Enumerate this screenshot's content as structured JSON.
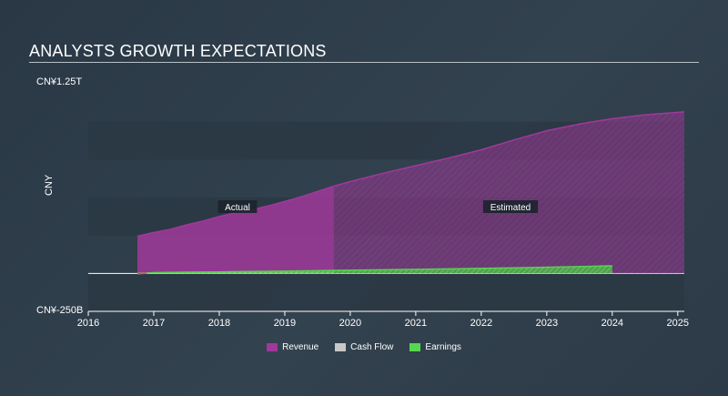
{
  "title": "ANALYSTS GROWTH EXPECTATIONS",
  "colors": {
    "revenue": "#a0399b",
    "cash_flow": "#c8c8c8",
    "earnings": "#58d64f",
    "band": "#2b3845",
    "label_bg": "#1c242d"
  },
  "chart_data": {
    "type": "area",
    "ylabel": "CNY",
    "ylim": [
      -250000000000,
      1250000000000
    ],
    "ytick_labels": [
      "CN¥1.25T",
      "CN¥-250B"
    ],
    "xlim": [
      2016,
      2025.1
    ],
    "x_ticks": [
      "2016",
      "2017",
      "2018",
      "2019",
      "2020",
      "2021",
      "2022",
      "2023",
      "2024",
      "2025"
    ],
    "grid": "horizontal bands",
    "legend_position": "bottom-center",
    "regions": [
      {
        "label": "Actual",
        "from": 2016.75,
        "to": 2019.75
      },
      {
        "label": "Estimated",
        "from": 2019.75,
        "to": 2025.1
      }
    ],
    "series": [
      {
        "name": "Revenue",
        "x": [
          2016.75,
          2017.0,
          2017.25,
          2017.5,
          2017.75,
          2018.0,
          2018.25,
          2018.5,
          2018.75,
          2019.0,
          2019.25,
          2019.5,
          2019.75,
          2020.0,
          2020.5,
          2021.0,
          2021.5,
          2022.0,
          2022.5,
          2023.0,
          2023.5,
          2024.0,
          2024.5,
          2025.1
        ],
        "values": [
          245000000000,
          270000000000,
          290000000000,
          320000000000,
          345000000000,
          375000000000,
          400000000000,
          420000000000,
          445000000000,
          475000000000,
          505000000000,
          540000000000,
          575000000000,
          605000000000,
          660000000000,
          710000000000,
          760000000000,
          815000000000,
          880000000000,
          940000000000,
          985000000000,
          1020000000000,
          1045000000000,
          1065000000000
        ]
      },
      {
        "name": "Cash Flow",
        "x": [
          2016.75,
          2017.5,
          2018.5,
          2019.75
        ],
        "values": [
          2000000000,
          4000000000,
          5000000000,
          6000000000
        ]
      },
      {
        "name": "Earnings",
        "x": [
          2016.75,
          2017.0,
          2017.5,
          2018.0,
          2018.5,
          2019.0,
          2019.5,
          2019.75,
          2020.5,
          2021.5,
          2022.5,
          2023.5,
          2024.0
        ],
        "values": [
          -3000000000,
          5000000000,
          8000000000,
          10000000000,
          13000000000,
          15000000000,
          18000000000,
          20000000000,
          24000000000,
          30000000000,
          37000000000,
          45000000000,
          50000000000
        ]
      }
    ]
  }
}
